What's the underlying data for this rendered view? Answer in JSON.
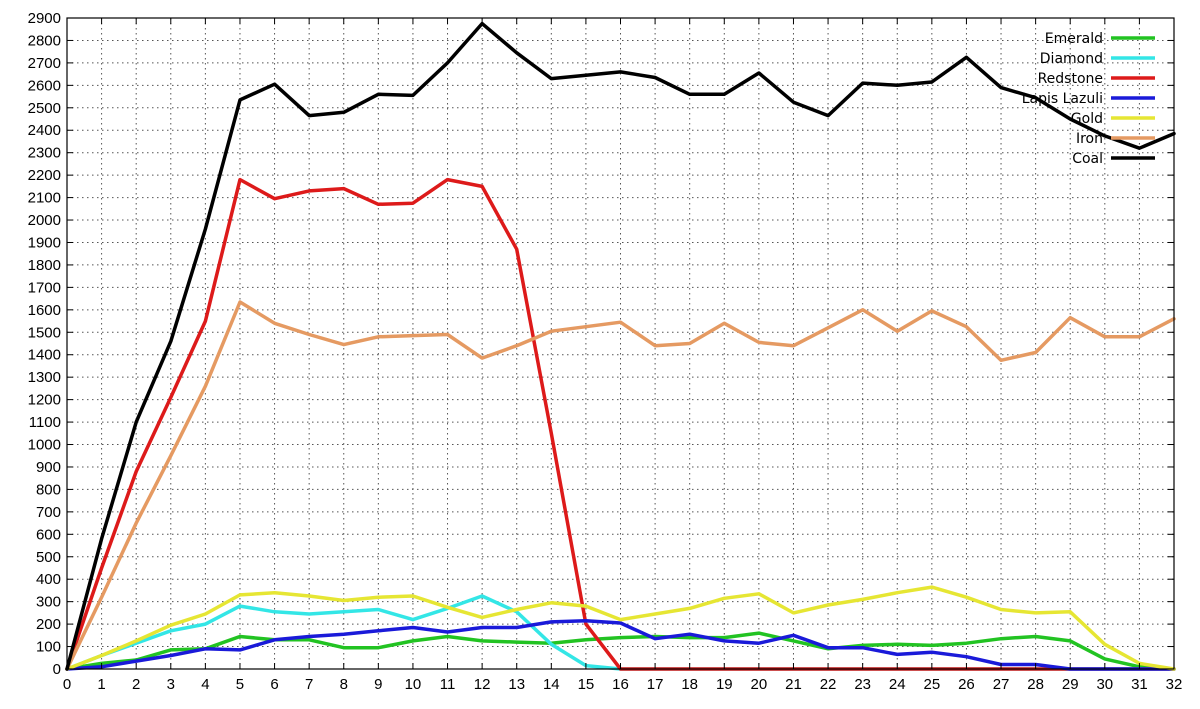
{
  "chart_data": {
    "type": "line",
    "title": "",
    "xlabel": "",
    "ylabel": "",
    "x": [
      0,
      1,
      2,
      3,
      4,
      5,
      6,
      7,
      8,
      9,
      10,
      11,
      12,
      13,
      14,
      15,
      16,
      17,
      18,
      19,
      20,
      21,
      22,
      23,
      24,
      25,
      26,
      27,
      28,
      29,
      30,
      31,
      32
    ],
    "xlim": [
      0,
      32
    ],
    "ylim": [
      0,
      2900
    ],
    "x_ticks": [
      "0",
      "1",
      "2",
      "3",
      "4",
      "5",
      "6",
      "7",
      "8",
      "9",
      "10",
      "11",
      "12",
      "13",
      "14",
      "15",
      "16",
      "17",
      "18",
      "19",
      "20",
      "21",
      "22",
      "23",
      "24",
      "25",
      "26",
      "27",
      "28",
      "29",
      "30",
      "31",
      "32"
    ],
    "y_ticks": [
      "0",
      "100",
      "200",
      "300",
      "400",
      "500",
      "600",
      "700",
      "800",
      "900",
      "1000",
      "1100",
      "1200",
      "1300",
      "1400",
      "1500",
      "1600",
      "1700",
      "1800",
      "1900",
      "2000",
      "2100",
      "2200",
      "2300",
      "2400",
      "2500",
      "2600",
      "2700",
      "2800",
      "2900"
    ],
    "grid": true,
    "legend_position": "top-right",
    "series": [
      {
        "name": "Emerald",
        "color": "#22c322",
        "values": [
          0,
          25,
          40,
          85,
          90,
          145,
          130,
          130,
          95,
          95,
          125,
          145,
          125,
          120,
          115,
          130,
          140,
          145,
          140,
          140,
          160,
          125,
          90,
          105,
          110,
          105,
          115,
          135,
          145,
          125,
          45,
          10,
          0
        ]
      },
      {
        "name": "Diamond",
        "color": "#33e6e6",
        "values": [
          0,
          60,
          115,
          170,
          200,
          280,
          255,
          245,
          255,
          265,
          220,
          270,
          325,
          255,
          110,
          15,
          0,
          0,
          0,
          0,
          0,
          0,
          0,
          0,
          0,
          0,
          0,
          0,
          0,
          0,
          0,
          0,
          0
        ]
      },
      {
        "name": "Redstone",
        "color": "#dd1a1a",
        "values": [
          0,
          450,
          880,
          1210,
          1550,
          2180,
          2095,
          2130,
          2140,
          2070,
          2075,
          2180,
          2150,
          1870,
          1050,
          200,
          0,
          0,
          0,
          0,
          0,
          0,
          0,
          0,
          0,
          0,
          0,
          0,
          0,
          0,
          0,
          0,
          0
        ]
      },
      {
        "name": "Lapis Lazuli",
        "color": "#1a1ad9",
        "values": [
          0,
          10,
          35,
          60,
          90,
          85,
          130,
          145,
          155,
          170,
          185,
          165,
          185,
          185,
          210,
          215,
          205,
          135,
          155,
          125,
          115,
          150,
          95,
          95,
          65,
          75,
          55,
          20,
          20,
          0,
          0,
          0,
          0
        ]
      },
      {
        "name": "Gold",
        "color": "#e6e633",
        "values": [
          0,
          60,
          125,
          195,
          245,
          330,
          340,
          325,
          305,
          320,
          325,
          275,
          230,
          265,
          295,
          280,
          220,
          245,
          270,
          315,
          335,
          250,
          285,
          310,
          340,
          365,
          320,
          265,
          250,
          255,
          110,
          25,
          0
        ]
      },
      {
        "name": "Iron",
        "color": "#e59a62",
        "values": [
          0,
          320,
          650,
          950,
          1260,
          1635,
          1540,
          1490,
          1445,
          1480,
          1485,
          1490,
          1385,
          1440,
          1505,
          1525,
          1545,
          1440,
          1450,
          1540,
          1455,
          1440,
          1520,
          1600,
          1505,
          1595,
          1525,
          1375,
          1410,
          1565,
          1480,
          1480,
          1560
        ]
      },
      {
        "name": "Coal",
        "color": "#000000",
        "values": [
          0,
          580,
          1100,
          1460,
          1960,
          2535,
          2605,
          2465,
          2480,
          2560,
          2555,
          2700,
          2875,
          2745,
          2630,
          2645,
          2660,
          2635,
          2560,
          2560,
          2655,
          2525,
          2465,
          2610,
          2600,
          2615,
          2725,
          2590,
          2545,
          2450,
          2375,
          2320,
          2385
        ]
      }
    ]
  }
}
